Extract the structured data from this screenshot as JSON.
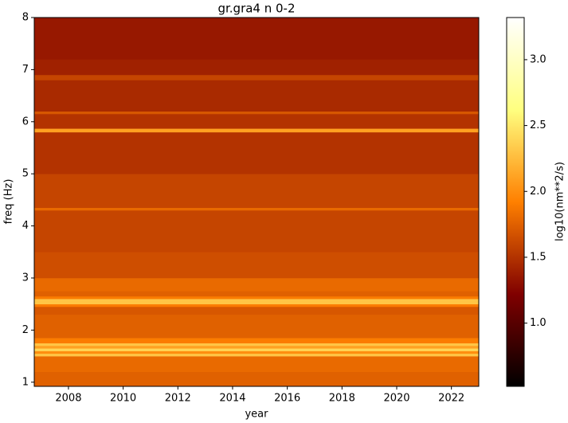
{
  "chart_data": {
    "type": "heatmap",
    "title": "gr.gra4 n 0-2",
    "x_label": "year",
    "y_label": "freq (Hz)",
    "colorbar_label": "log10(nm**2/s)",
    "colormap": "afmhot",
    "xlim": [
      2006.75,
      2023.0
    ],
    "xticks": [
      2008,
      2010,
      2012,
      2014,
      2016,
      2018,
      2020,
      2022
    ],
    "ylim": [
      0.92,
      8
    ],
    "yticks": [
      1,
      2,
      3,
      4,
      5,
      6,
      7,
      8
    ],
    "clim": [
      0.52,
      3.32
    ],
    "cticks": [
      {
        "value": 1,
        "label": "1.0"
      },
      {
        "value": 1.5,
        "label": "1.5"
      },
      {
        "value": 2,
        "label": "2.0"
      },
      {
        "value": 2.5,
        "label": "2.5"
      },
      {
        "value": 3,
        "label": "3.0"
      }
    ],
    "freq_edges": [
      0.92,
      1.2,
      1.5,
      1.55,
      1.6,
      1.65,
      1.7,
      1.75,
      1.85,
      2.3,
      2.45,
      2.5,
      2.6,
      2.65,
      2.75,
      3.0,
      3.5,
      4.3,
      4.35,
      5.0,
      5.8,
      5.87,
      6.15,
      6.2,
      6.8,
      6.9,
      7.2,
      8.0
    ],
    "values": [
      1.75,
      1.8,
      2.3,
      2.0,
      2.4,
      2.1,
      2.3,
      1.9,
      1.75,
      1.7,
      1.9,
      2.3,
      1.9,
      1.75,
      1.8,
      1.65,
      1.6,
      1.8,
      1.6,
      1.5,
      2.1,
      1.5,
      1.7,
      1.45,
      1.6,
      1.4,
      1.35
    ]
  }
}
